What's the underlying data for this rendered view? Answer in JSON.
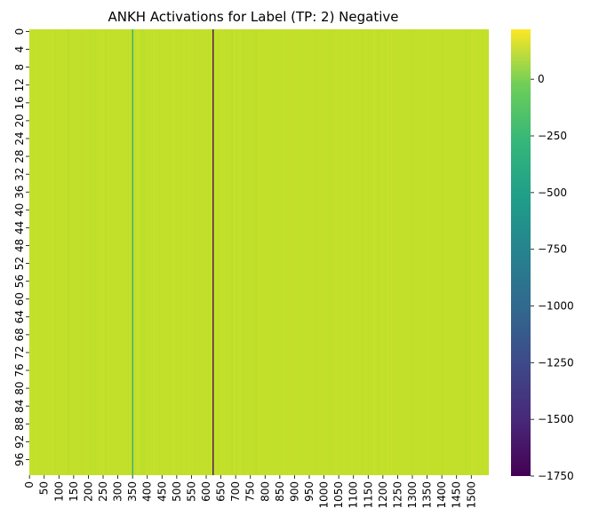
{
  "chart_data": {
    "type": "heatmap",
    "title": "ANKH Activations for Label (TP: 2) Negative",
    "xlabel": "",
    "ylabel": "",
    "x_range": [
      0,
      1560
    ],
    "y_range": [
      0,
      100
    ],
    "x_ticks": [
      "0",
      "50",
      "100",
      "150",
      "200",
      "250",
      "300",
      "350",
      "400",
      "450",
      "500",
      "550",
      "600",
      "650",
      "700",
      "750",
      "800",
      "850",
      "900",
      "950",
      "1000",
      "1050",
      "1100",
      "1150",
      "1200",
      "1250",
      "1300",
      "1350",
      "1400",
      "1450",
      "1500"
    ],
    "y_ticks": [
      "0",
      "4",
      "8",
      "12",
      "16",
      "20",
      "24",
      "28",
      "32",
      "36",
      "40",
      "44",
      "48",
      "52",
      "56",
      "60",
      "64",
      "68",
      "72",
      "76",
      "80",
      "84",
      "88",
      "92",
      "96"
    ],
    "background_value": 40,
    "highlighted_columns": [
      {
        "column": 349,
        "value": -520
      },
      {
        "column": 622,
        "value": -1750
      }
    ],
    "colorbar": {
      "colormap": "viridis",
      "min": -1750,
      "max": 220,
      "ticks": [
        {
          "value": 0,
          "label": "0"
        },
        {
          "value": -250,
          "label": "−250"
        },
        {
          "value": -500,
          "label": "−500"
        },
        {
          "value": -750,
          "label": "−750"
        },
        {
          "value": -1000,
          "label": "−1000"
        },
        {
          "value": -1250,
          "label": "−1250"
        },
        {
          "value": -1500,
          "label": "−1500"
        },
        {
          "value": -1750,
          "label": "−1750"
        }
      ]
    },
    "grid": false,
    "legend": "colorbar-right"
  }
}
